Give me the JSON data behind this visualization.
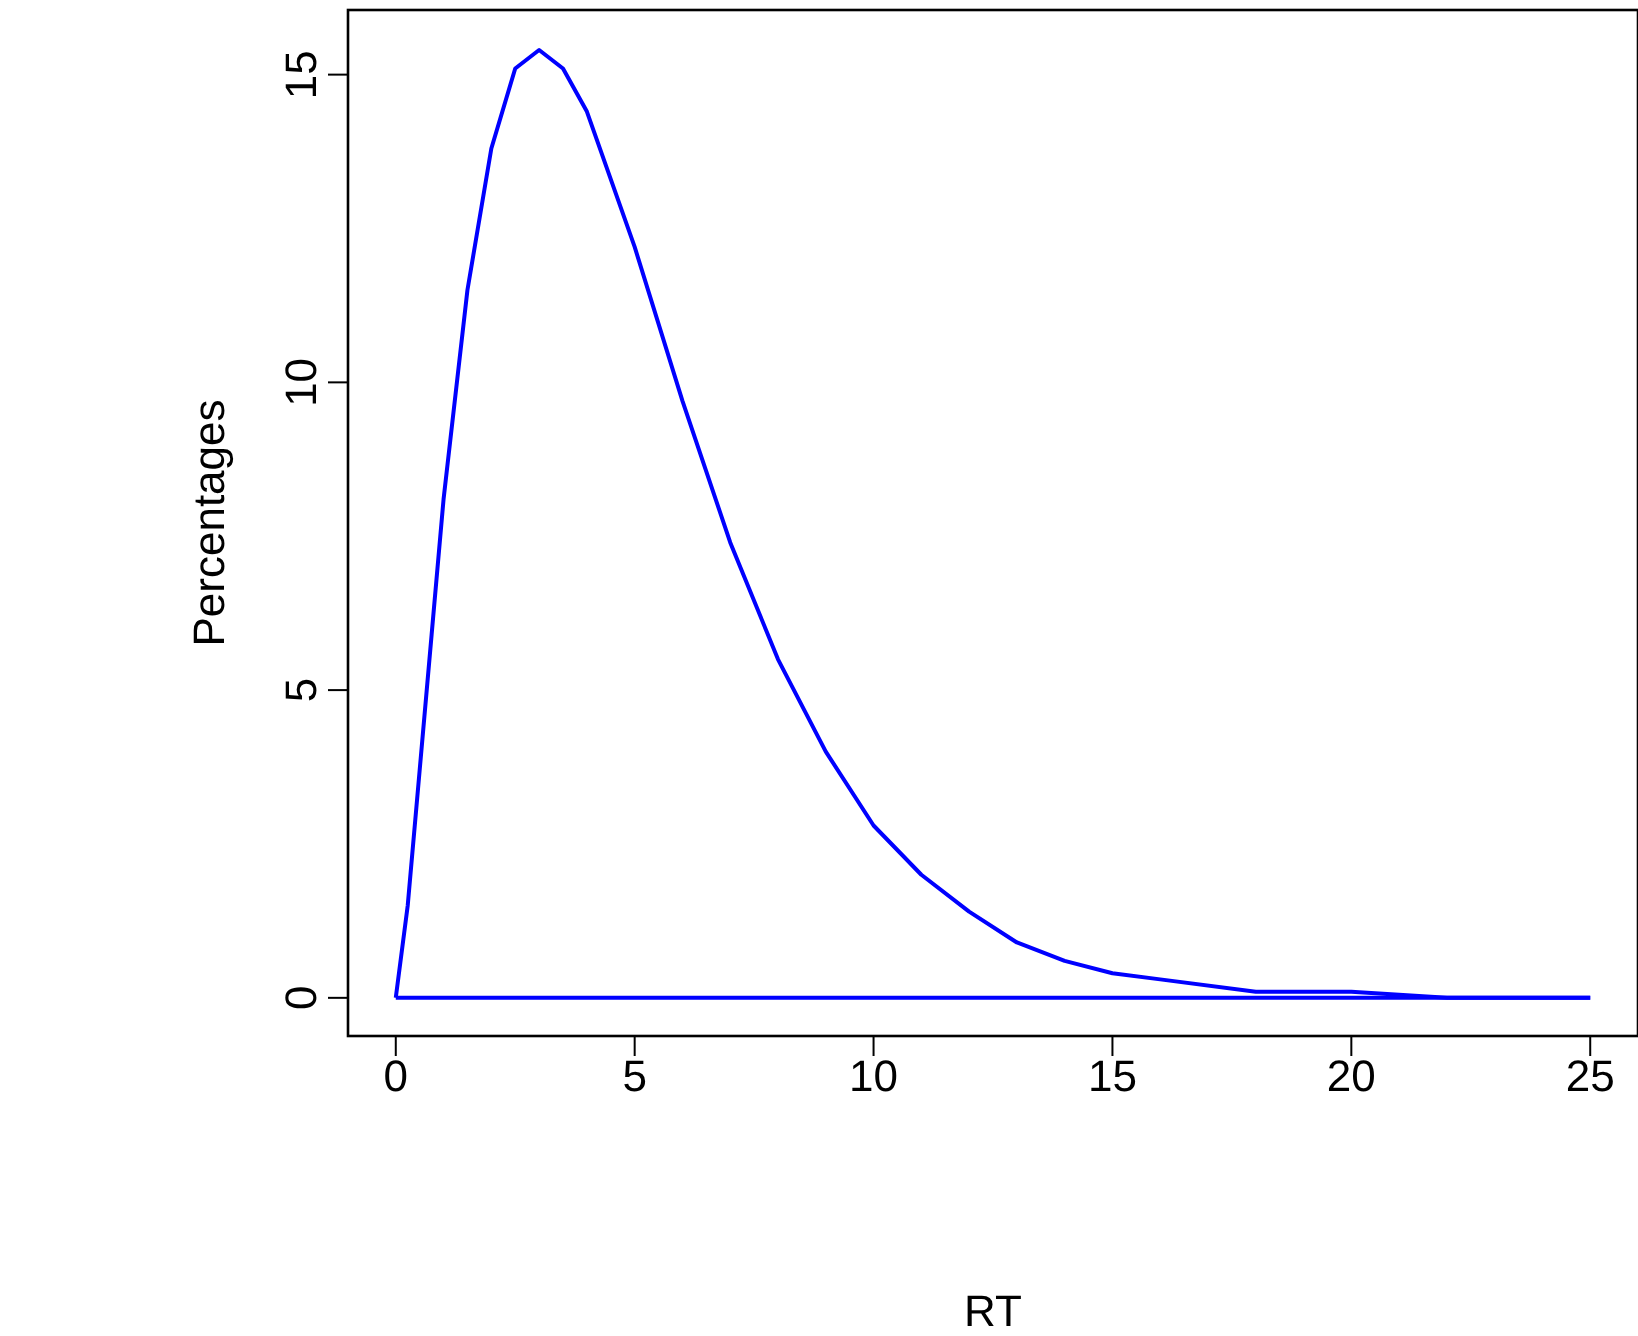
{
  "chart_data": {
    "type": "line",
    "xlabel": "RT",
    "ylabel": "Percentages",
    "xlim": [
      -1,
      26
    ],
    "ylim": [
      -0.62,
      16.05
    ],
    "xticks": [
      0,
      5,
      10,
      15,
      20,
      25
    ],
    "yticks": [
      0,
      5,
      10,
      15
    ],
    "grid": false,
    "marker": "none",
    "line_style": "solid",
    "series": [
      {
        "color": "#0000ff",
        "x": [
          0,
          0.25,
          0.5,
          0.75,
          1,
          1.5,
          2,
          2.5,
          3,
          3.5,
          4,
          5,
          6,
          7,
          8,
          9,
          10,
          11,
          12,
          13,
          14,
          15,
          16,
          18,
          20,
          22,
          25
        ],
        "values": [
          0,
          1.5,
          3.7,
          5.9,
          8.1,
          11.5,
          13.8,
          15.1,
          15.4,
          15.1,
          14.4,
          12.2,
          9.7,
          7.4,
          5.5,
          4.0,
          2.8,
          2.0,
          1.4,
          0.9,
          0.6,
          0.4,
          0.3,
          0.1,
          0.1,
          0,
          0
        ]
      },
      {
        "color": "#0000ff",
        "x": [
          0,
          25
        ],
        "values": [
          0,
          0
        ]
      }
    ]
  }
}
